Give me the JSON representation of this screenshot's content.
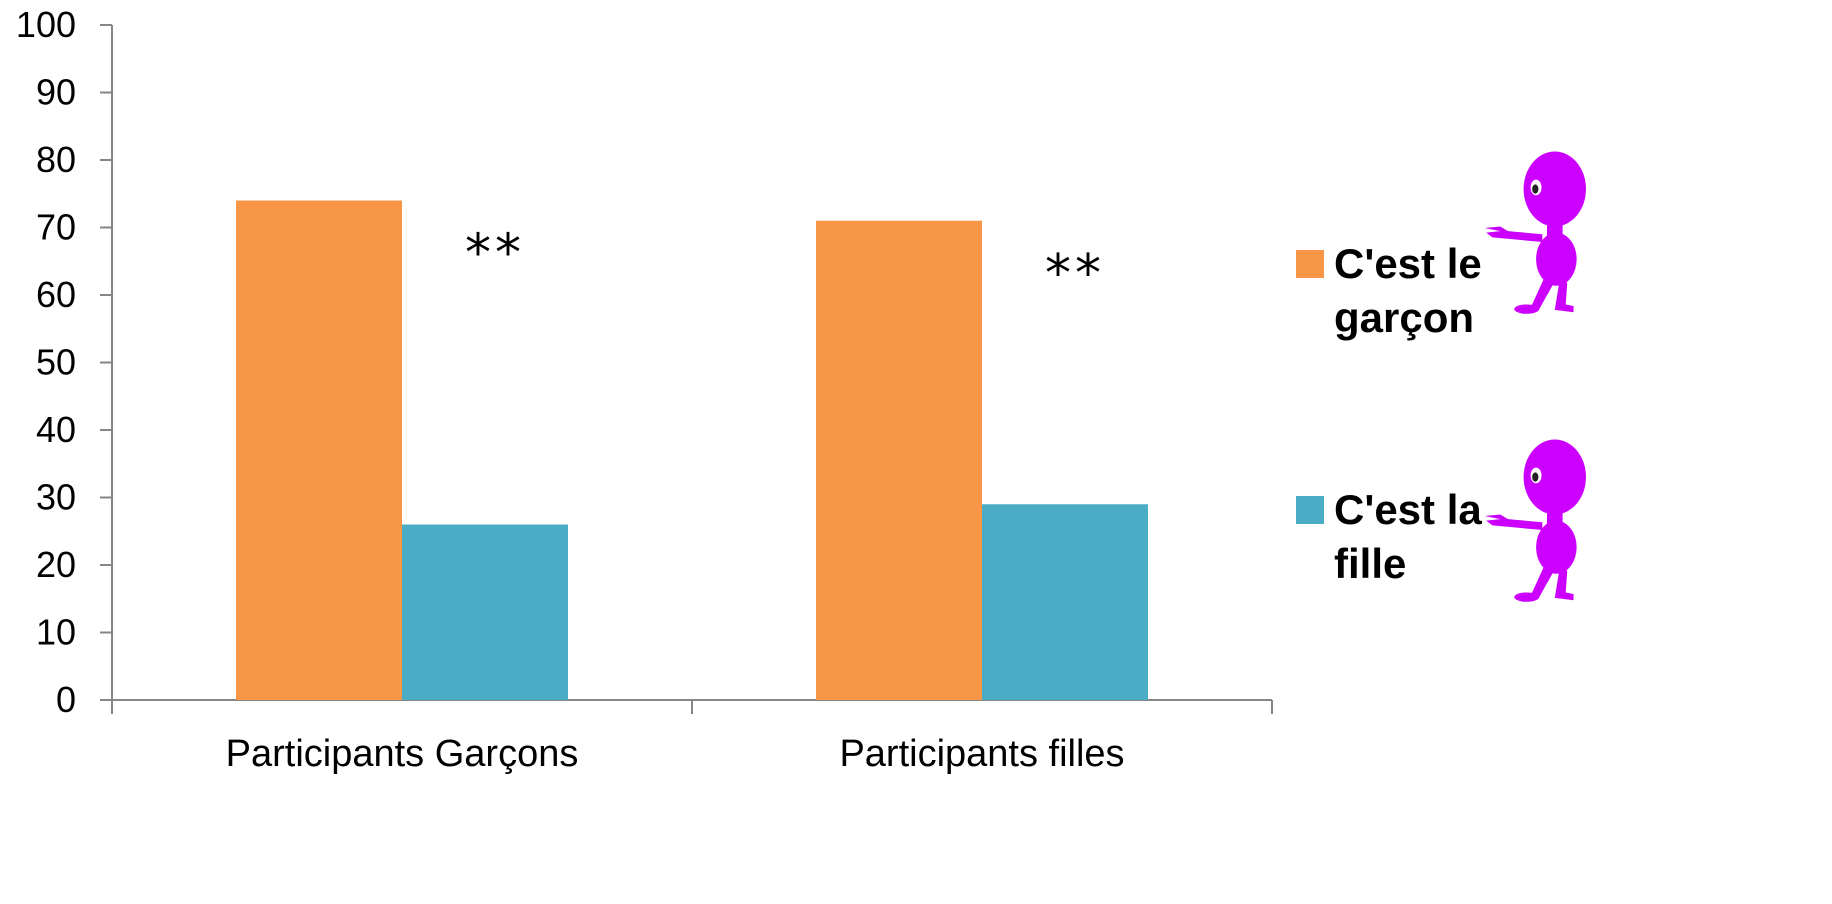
{
  "chart_data": {
    "type": "bar",
    "categories": [
      "Participants Garçons",
      "Participants filles"
    ],
    "series": [
      {
        "name": "C'est le garçon",
        "values": [
          74,
          71
        ],
        "color": "#f79646"
      },
      {
        "name": "C'est la fille",
        "values": [
          26,
          29
        ],
        "color": "#4bacc6"
      }
    ],
    "ylim": [
      0,
      100
    ],
    "yticks": [
      0,
      10,
      20,
      30,
      40,
      50,
      60,
      70,
      80,
      90,
      100
    ],
    "annotations": [
      "**",
      "**"
    ],
    "legend": {
      "placement": "right",
      "entries": [
        {
          "lines": [
            "C'est le",
            "garçon"
          ],
          "icon": "purple-alien-pointing-icon"
        },
        {
          "lines": [
            "C'est la",
            "fille"
          ],
          "icon": "purple-alien-pointing-icon"
        }
      ]
    },
    "grid": false
  }
}
